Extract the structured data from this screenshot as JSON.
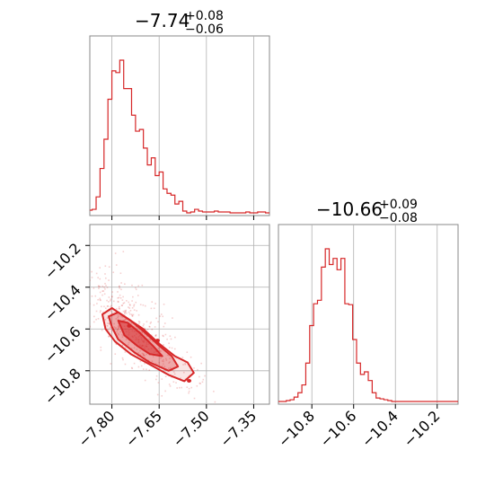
{
  "chart_data": [
    {
      "type": "histogram",
      "title": "−7.74",
      "title_sup": "+0.08",
      "title_sub": "−0.06",
      "xlim": [
        -7.87,
        -7.3
      ],
      "x_ticks": [
        -7.8,
        -7.65,
        -7.5,
        -7.35
      ],
      "x_grid": [
        -7.8,
        -7.65,
        -7.5,
        -7.35
      ],
      "grid": true,
      "color": "#d62728",
      "bins": {
        "start": -7.875,
        "width": 0.0125,
        "counts": [
          3,
          4,
          18,
          50,
          83,
          128,
          160,
          158,
          172,
          140,
          140,
          110,
          92,
          94,
          73,
          54,
          62,
          42,
          46,
          27,
          22,
          20,
          10,
          13,
          2,
          0,
          1,
          4,
          2,
          1,
          1,
          1,
          2,
          1,
          1,
          1,
          0,
          0,
          0,
          0,
          1,
          0,
          0,
          1,
          1,
          0
        ]
      }
    },
    {
      "type": "histogram",
      "title": "−10.66",
      "title_sup": "+0.09",
      "title_sub": "−0.08",
      "xlim": [
        -10.96,
        -10.1
      ],
      "x_ticks": [
        -10.8,
        -10.6,
        -10.4,
        -10.2
      ],
      "x_tick_labels": [
        "−10.8",
        "−10.6",
        "−10.4",
        "−10.2"
      ],
      "x_grid": [
        -10.8,
        -10.6,
        -10.4,
        -10.2
      ],
      "grid": true,
      "color": "#d62728",
      "bins": {
        "start": -10.96,
        "width": 0.0187,
        "counts": [
          0,
          0,
          1,
          2,
          5,
          10,
          19,
          44,
          87,
          112,
          116,
          154,
          175,
          157,
          164,
          151,
          164,
          112,
          111,
          71,
          44,
          31,
          34,
          24,
          10,
          4,
          3,
          2,
          1,
          0,
          0,
          0,
          0,
          0,
          0,
          0,
          0,
          0,
          0,
          0,
          0,
          0,
          0,
          0,
          0,
          0
        ]
      }
    },
    {
      "type": "contour",
      "x_ticks": [
        -7.8,
        -7.65,
        -7.5,
        -7.35
      ],
      "x_tick_labels": [
        "−7.80",
        "−7.65",
        "−7.50",
        "−7.35"
      ],
      "y_ticks": [
        -10.2,
        -10.4,
        -10.6,
        -10.8
      ],
      "y_tick_labels": [
        "−10.2",
        "−10.4",
        "−10.6",
        "−10.8"
      ],
      "xlim": [
        -7.87,
        -7.3
      ],
      "ylim": [
        -10.96,
        -10.1
      ],
      "grid": true,
      "color": "#d62728",
      "levels": [
        [
          [
            -7.83,
            -10.53
          ],
          [
            -7.8,
            -10.5
          ],
          [
            -7.75,
            -10.55
          ],
          [
            -7.7,
            -10.6
          ],
          [
            -7.65,
            -10.67
          ],
          [
            -7.6,
            -10.73
          ],
          [
            -7.56,
            -10.76
          ],
          [
            -7.54,
            -10.81
          ],
          [
            -7.57,
            -10.85
          ],
          [
            -7.62,
            -10.82
          ],
          [
            -7.68,
            -10.77
          ],
          [
            -7.74,
            -10.72
          ],
          [
            -7.79,
            -10.66
          ],
          [
            -7.82,
            -10.6
          ]
        ],
        [
          [
            -7.81,
            -10.54
          ],
          [
            -7.78,
            -10.52
          ],
          [
            -7.74,
            -10.56
          ],
          [
            -7.7,
            -10.61
          ],
          [
            -7.65,
            -10.68
          ],
          [
            -7.61,
            -10.73
          ],
          [
            -7.59,
            -10.78
          ],
          [
            -7.62,
            -10.8
          ],
          [
            -7.68,
            -10.76
          ],
          [
            -7.73,
            -10.71
          ],
          [
            -7.78,
            -10.65
          ],
          [
            -7.8,
            -10.59
          ]
        ],
        [
          [
            -7.78,
            -10.56
          ],
          [
            -7.75,
            -10.57
          ],
          [
            -7.71,
            -10.62
          ],
          [
            -7.67,
            -10.68
          ],
          [
            -7.64,
            -10.73
          ],
          [
            -7.68,
            -10.72
          ],
          [
            -7.72,
            -10.68
          ],
          [
            -7.76,
            -10.63
          ]
        ]
      ],
      "peaks": [
        [
          -7.745,
          -10.585
        ],
        [
          -7.655,
          -10.655
        ],
        [
          -7.555,
          -10.848
        ]
      ],
      "scatter_bounds": {
        "x": [
          -7.86,
          -7.4
        ],
        "y": [
          -10.95,
          -10.2
        ]
      }
    }
  ]
}
